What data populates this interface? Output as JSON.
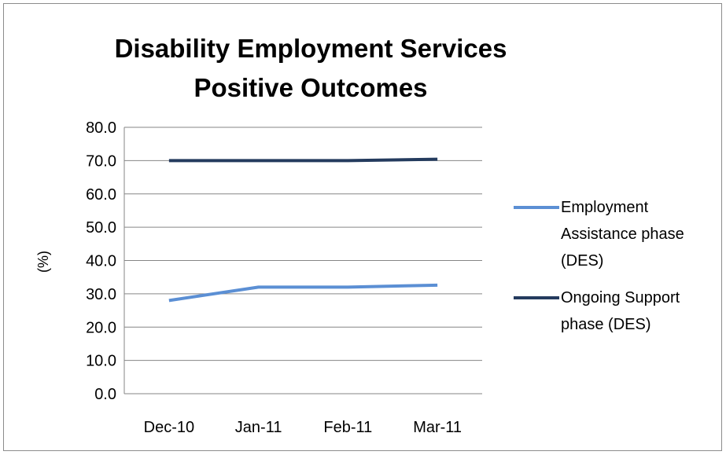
{
  "chart_data": {
    "type": "line",
    "title": [
      "Disability Employment Services",
      "Positive Outcomes"
    ],
    "ylabel": "(%)",
    "xlabel": "",
    "categories": [
      "Dec-10",
      "Jan-11",
      "Feb-11",
      "Mar-11"
    ],
    "ylim": [
      0,
      80
    ],
    "yticks": [
      "0.0",
      "10.0",
      "20.0",
      "30.0",
      "40.0",
      "50.0",
      "60.0",
      "70.0",
      "80.0"
    ],
    "grid": true,
    "legend_position": "right",
    "series": [
      {
        "name": [
          "Employment",
          "Assistance phase",
          "(DES)"
        ],
        "values": [
          28.0,
          32.0,
          32.0,
          32.6
        ],
        "color": "#5b8fd4"
      },
      {
        "name": [
          "Ongoing Support",
          "phase (DES)"
        ],
        "values": [
          70.0,
          70.0,
          70.0,
          70.4
        ],
        "color": "#243b5e"
      }
    ]
  }
}
